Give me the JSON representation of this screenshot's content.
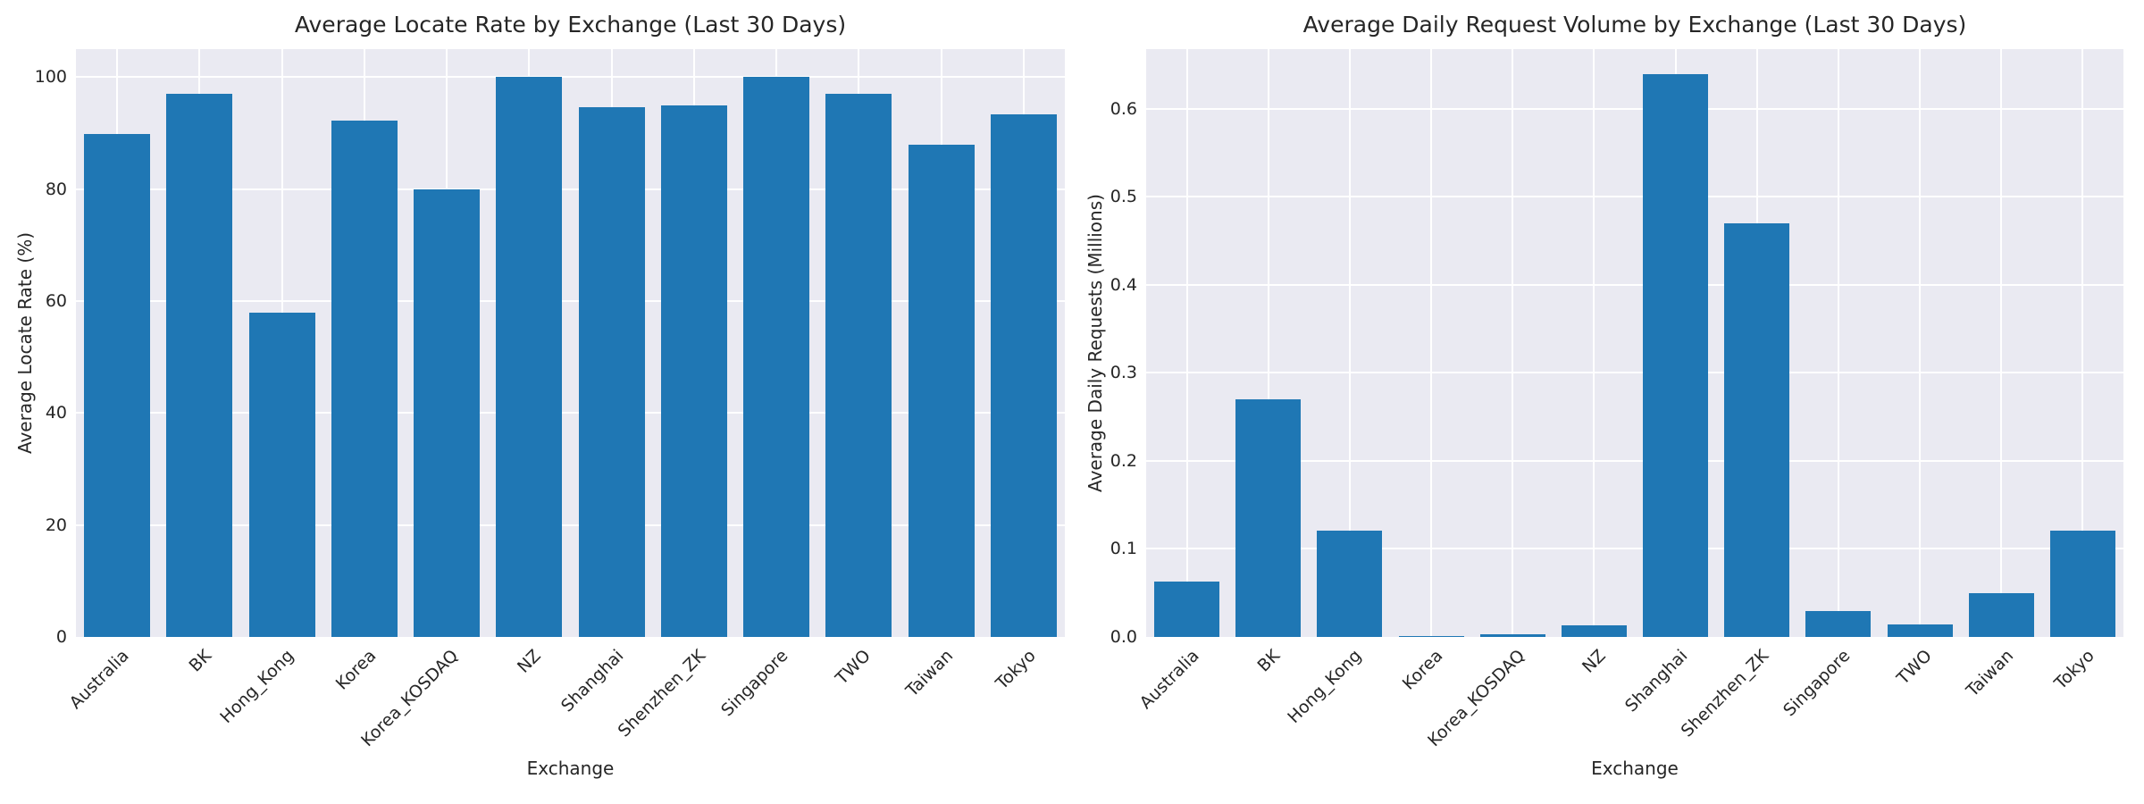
{
  "style": {
    "bar_color": "#1f77b4",
    "axes_background": "#eaeaf2",
    "grid_color": "#ffffff",
    "text_color": "#262626",
    "figure_background": "#ffffff"
  },
  "chart_data": [
    {
      "type": "bar",
      "title": "Average Locate Rate by Exchange (Last 30 Days)",
      "xlabel": "Exchange",
      "ylabel": "Average Locate Rate (%)",
      "categories": [
        "Australia",
        "BK",
        "Hong_Kong",
        "Korea",
        "Korea_KOSDAQ",
        "NZ",
        "Shanghai",
        "Shenzhen_ZK",
        "Singapore",
        "TWO",
        "Taiwan",
        "Tokyo"
      ],
      "values": [
        89.8,
        97.1,
        58.0,
        92.3,
        80.0,
        100.0,
        94.6,
        94.9,
        100.0,
        97.1,
        87.9,
        93.3
      ],
      "ylim": [
        0,
        105
      ],
      "yticks": [
        0,
        20,
        40,
        60,
        80,
        100
      ],
      "ytick_labels": [
        "0",
        "20",
        "40",
        "60",
        "80",
        "100"
      ],
      "xtick_rotation_deg": 45,
      "grid": true,
      "legend": "none"
    },
    {
      "type": "bar",
      "title": "Average Daily Request Volume by Exchange (Last 30 Days)",
      "xlabel": "Exchange",
      "ylabel": "Average Daily Requests (Millions)",
      "categories": [
        "Australia",
        "BK",
        "Hong_Kong",
        "Korea",
        "Korea_KOSDAQ",
        "NZ",
        "Shanghai",
        "Shenzhen_ZK",
        "Singapore",
        "TWO",
        "Taiwan",
        "Tokyo"
      ],
      "values": [
        0.063,
        0.27,
        0.121,
        0.001,
        0.003,
        0.013,
        0.64,
        0.47,
        0.029,
        0.014,
        0.05,
        0.121
      ],
      "ylim": [
        0,
        0.668
      ],
      "yticks": [
        0.0,
        0.1,
        0.2,
        0.3,
        0.4,
        0.5,
        0.6
      ],
      "ytick_labels": [
        "0.0",
        "0.1",
        "0.2",
        "0.3",
        "0.4",
        "0.5",
        "0.6"
      ],
      "xtick_rotation_deg": 45,
      "grid": true,
      "legend": "none"
    }
  ]
}
